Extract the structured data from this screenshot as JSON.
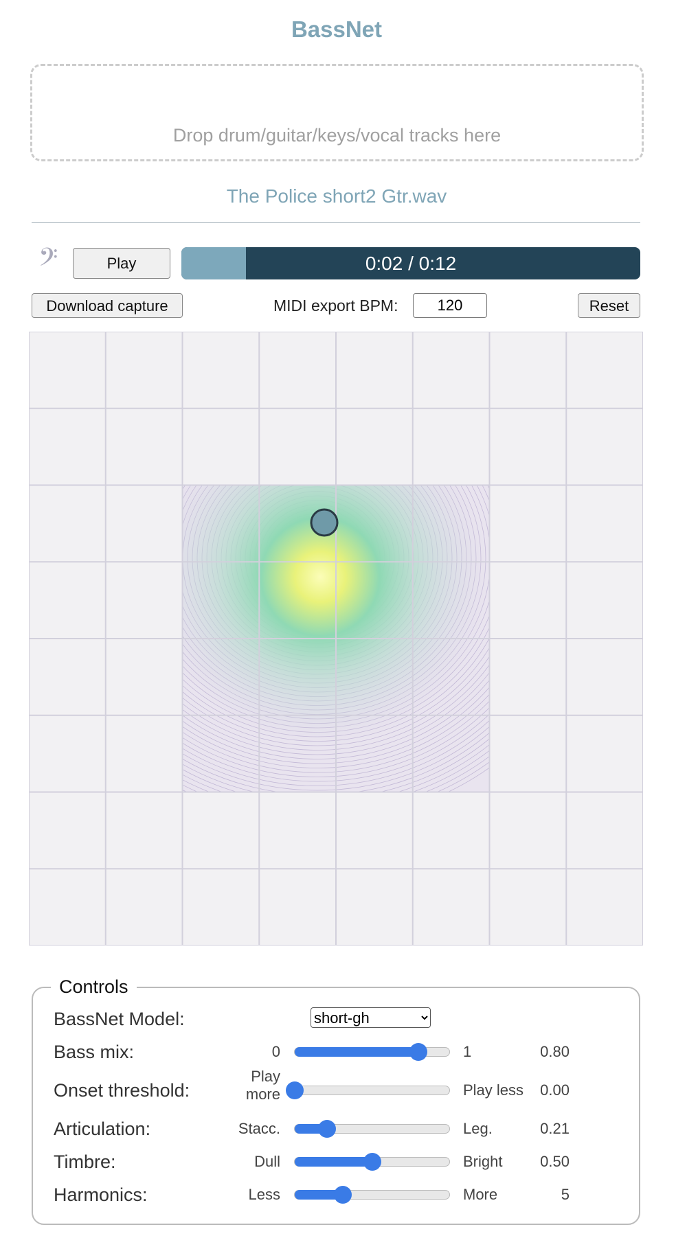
{
  "app_title": "BassNet",
  "dropzone": {
    "text": "Drop drum/guitar/keys/vocal tracks here"
  },
  "file_name": "The Police short2 Gtr.wav",
  "player": {
    "play_label": "Play",
    "time_text": "0:02 / 0:12",
    "progress_percent": 14,
    "icon": "bass-clef-icon"
  },
  "toolbar": {
    "download_label": "Download capture",
    "bpm_label": "MIDI export BPM:",
    "bpm_value": "120",
    "reset_label": "Reset"
  },
  "grid": {
    "rows": 8,
    "cols": 8,
    "colors": {
      "background": "#f2f1f3",
      "lines": "#d2d0dc",
      "peak": "#f4f79a",
      "mid": "#7fd3b0",
      "low": "#cbbfdc"
    }
  },
  "controls": {
    "legend": "Controls",
    "model": {
      "label": "BassNet Model:",
      "selected": "short-gh"
    },
    "sliders": [
      {
        "label": "Bass mix:",
        "left": "0",
        "right": "1",
        "value": "0.80",
        "fraction": 0.8
      },
      {
        "label": "Onset threshold:",
        "left": "Play more",
        "right": "Play less",
        "value": "0.00",
        "fraction": 0.0
      },
      {
        "label": "Articulation:",
        "left": "Stacc.",
        "right": "Leg.",
        "value": "0.21",
        "fraction": 0.21
      },
      {
        "label": "Timbre:",
        "left": "Dull",
        "right": "Bright",
        "value": "0.50",
        "fraction": 0.5
      },
      {
        "label": "Harmonics:",
        "left": "Less",
        "right": "More",
        "value": "5",
        "fraction": 0.31
      }
    ],
    "accent": "#3a7be6"
  }
}
